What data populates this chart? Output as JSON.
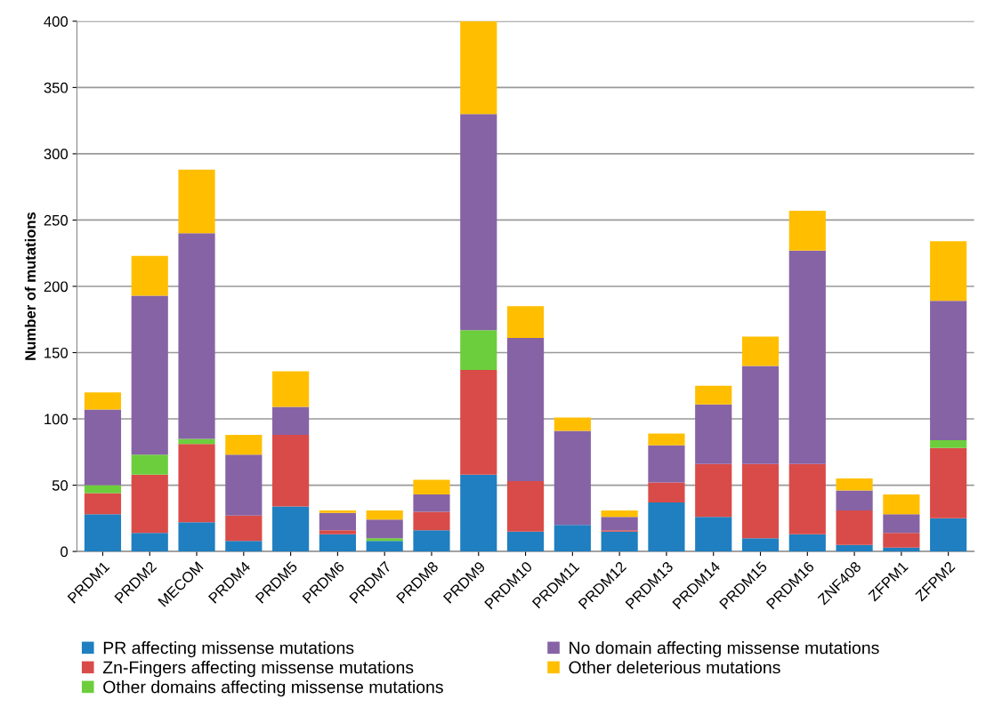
{
  "chart_data": {
    "type": "bar",
    "stacked": true,
    "ylabel": "Number of mutations",
    "categories": [
      "PRDM1",
      "PRDM2",
      "MECOM",
      "PRDM4",
      "PRDM5",
      "PRDM6",
      "PRDM7",
      "PRDM8",
      "PRDM9",
      "PRDM10",
      "PRDM11",
      "PRDM12",
      "PRDM13",
      "PRDM14",
      "PRDM15",
      "PRDM16",
      "ZNF408",
      "ZFPM1",
      "ZFPM2"
    ],
    "series": [
      {
        "name": "PR affecting missense mutations",
        "color": "#1f7fc0",
        "values": [
          28,
          14,
          22,
          8,
          34,
          13,
          8,
          16,
          58,
          15,
          20,
          15,
          37,
          26,
          10,
          13,
          5,
          3,
          25
        ]
      },
      {
        "name": "Zn-Fingers affecting missense mutations",
        "color": "#d94b48",
        "values": [
          16,
          44,
          59,
          19,
          54,
          3,
          0,
          14,
          79,
          38,
          0,
          1,
          15,
          40,
          56,
          53,
          26,
          11,
          53
        ]
      },
      {
        "name": "Other domains affecting missense mutations",
        "color": "#6cce3c",
        "values": [
          6,
          15,
          4,
          0,
          0,
          0,
          2,
          0,
          30,
          0,
          0,
          0,
          0,
          0,
          0,
          0,
          0,
          0,
          6
        ]
      },
      {
        "name": "No domain affecting missense mutations",
        "color": "#8663a5",
        "values": [
          57,
          120,
          155,
          46,
          21,
          13,
          14,
          13,
          163,
          108,
          71,
          10,
          28,
          45,
          74,
          161,
          15,
          14,
          105
        ]
      },
      {
        "name": "Other deleterious mutations",
        "color": "#ffbf00",
        "values": [
          13,
          30,
          48,
          15,
          27,
          2,
          7,
          11,
          70,
          24,
          10,
          5,
          9,
          14,
          22,
          30,
          9,
          15,
          45
        ]
      }
    ],
    "ylim": [
      0,
      400
    ],
    "yticks": [
      0,
      50,
      100,
      150,
      200,
      250,
      300,
      350,
      400
    ],
    "grid": "y",
    "legend": "bottom"
  }
}
